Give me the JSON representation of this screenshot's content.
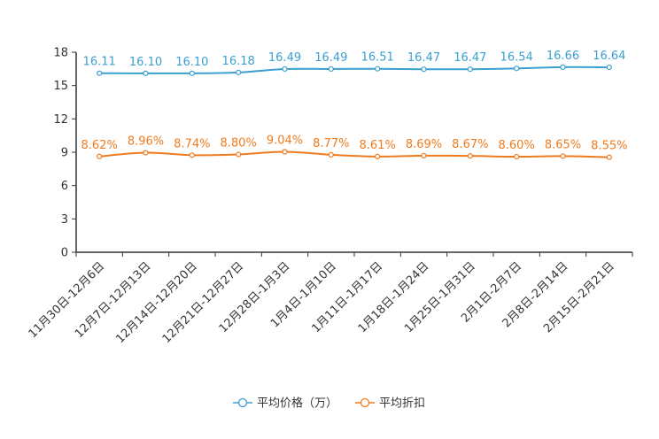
{
  "chart_data": {
    "type": "line",
    "title": "",
    "xlabel": "",
    "ylabel": "",
    "ylim": [
      0,
      18
    ],
    "yticks": [
      0,
      3,
      6,
      9,
      12,
      15,
      18
    ],
    "categories": [
      "11月30日-12月6日",
      "12月7日-12月13日",
      "12月14日-12月20日",
      "12月21日-12月27日",
      "12月28日-1月3日",
      "1月4日-1月10日",
      "1月11日-1月17日",
      "1月18日-1月24日",
      "1月25日-1月31日",
      "2月1日-2月7日",
      "2月8日-2月14日",
      "2月15日-2月21日"
    ],
    "series": [
      {
        "name": "平均价格（万）",
        "color": "#3a9fd1",
        "values": [
          16.11,
          16.1,
          16.1,
          16.18,
          16.49,
          16.49,
          16.51,
          16.47,
          16.47,
          16.54,
          16.66,
          16.64
        ],
        "labels": [
          "16.11",
          "16.10",
          "16.10",
          "16.18",
          "16.49",
          "16.49",
          "16.51",
          "16.47",
          "16.47",
          "16.54",
          "16.66",
          "16.64"
        ]
      },
      {
        "name": "平均折扣",
        "color": "#f07b1e",
        "values": [
          8.62,
          8.96,
          8.74,
          8.8,
          9.04,
          8.77,
          8.61,
          8.69,
          8.67,
          8.6,
          8.65,
          8.55
        ],
        "labels": [
          "8.62%",
          "8.96%",
          "8.74%",
          "8.80%",
          "9.04%",
          "8.77%",
          "8.61%",
          "8.69%",
          "8.67%",
          "8.60%",
          "8.65%",
          "8.55%"
        ]
      }
    ],
    "legend": "bottom-center",
    "grid": false
  }
}
